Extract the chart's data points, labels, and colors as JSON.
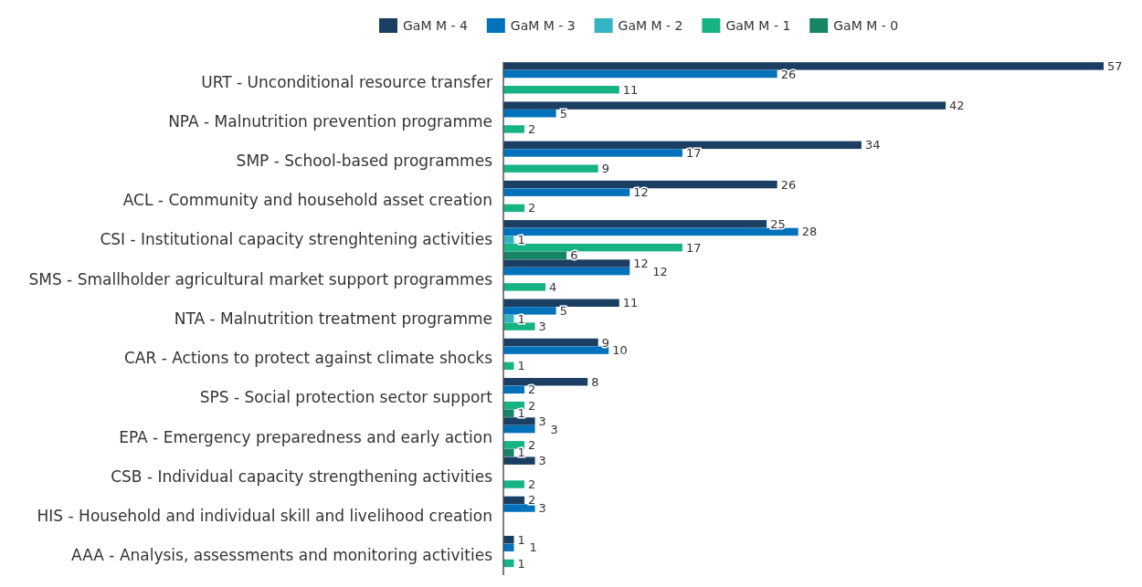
{
  "chart_data": {
    "type": "bar",
    "orientation": "horizontal",
    "data_labels": true,
    "legend": "top",
    "categories": [
      "URT - Unconditional resource transfer",
      "NPA - Malnutrition prevention programme",
      "SMP - School-based programmes",
      "ACL - Community and household asset creation",
      "CSI - Institutional capacity strenghtening activities",
      "SMS - Smallholder agricultural market support programmes",
      "NTA - Malnutrition treatment programme",
      "CAR - Actions to protect against climate shocks",
      "SPS - Social protection sector support",
      "EPA - Emergency preparedness and early action",
      "CSB - Individual capacity strengthening activities ",
      "HIS - Household and individual skill and livelihood creation",
      "AAA - Analysis, assessments and monitoring activities"
    ],
    "series": [
      {
        "name": "GaM M - 4",
        "color": "#1b3f63",
        "values": [
          57,
          42,
          34,
          26,
          25,
          12,
          11,
          9,
          8,
          3,
          3,
          2,
          1
        ]
      },
      {
        "name": "GaM M - 3",
        "color": "#0072bc",
        "values": [
          26,
          5,
          17,
          12,
          28,
          12,
          5,
          10,
          2,
          3,
          null,
          3,
          1
        ]
      },
      {
        "name": "GaM M - 2",
        "color": "#33b3c4",
        "values": [
          null,
          null,
          null,
          null,
          1,
          null,
          1,
          null,
          null,
          null,
          null,
          null,
          null
        ]
      },
      {
        "name": "GaM M - 1",
        "color": "#17b384",
        "values": [
          11,
          2,
          9,
          2,
          17,
          4,
          3,
          1,
          2,
          2,
          2,
          null,
          1
        ]
      },
      {
        "name": "GaM M - 0",
        "color": "#168465",
        "values": [
          null,
          null,
          null,
          null,
          6,
          null,
          null,
          null,
          1,
          1,
          null,
          null,
          null
        ]
      }
    ]
  }
}
